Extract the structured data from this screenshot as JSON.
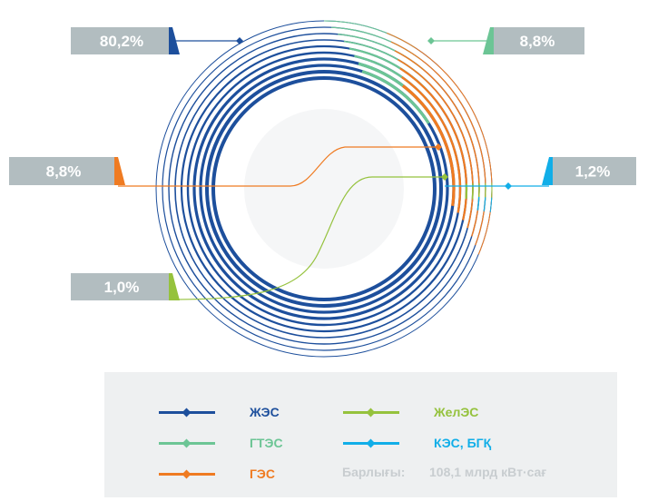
{
  "chart_data": {
    "type": "pie",
    "series": [
      {
        "name": "ЖЭС",
        "value_label": "80,2%",
        "value": 80.2,
        "color": "#1d4f9c"
      },
      {
        "name": "ГТЭС",
        "value_label": "8,8%",
        "value": 8.8,
        "color": "#6cc595"
      },
      {
        "name": "ГЭС",
        "value_label": "8,8%",
        "value": 8.8,
        "color": "#ef7b22"
      },
      {
        "name": "ЖелЭС",
        "value_label": "1,0%",
        "value": 1.0,
        "color": "#95c23d"
      },
      {
        "name": "КЭС, БГҚ",
        "value_label": "1,2%",
        "value": 1.2,
        "color": "#11aee8"
      }
    ],
    "total_label": "Барлығы:",
    "total_value": "108,1 млрд кВт·сағ",
    "label_bg_color": "#b2bdc0"
  }
}
